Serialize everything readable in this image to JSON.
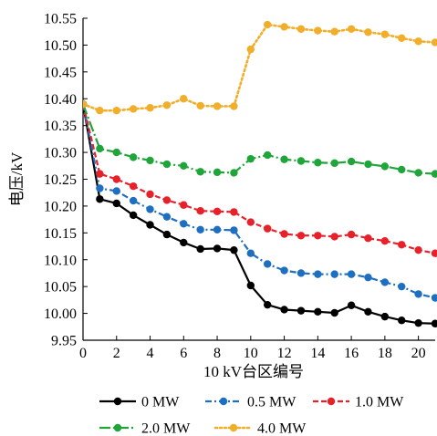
{
  "chart_data": {
    "type": "line",
    "title": "",
    "xlabel": "10 kV台区编号",
    "ylabel": "电压/kV",
    "xlim": [
      0,
      21
    ],
    "ylim": [
      9.95,
      10.55
    ],
    "xticks": [
      "0",
      "2",
      "4",
      "6",
      "8",
      "10",
      "12",
      "14",
      "16",
      "18",
      "20"
    ],
    "yticks": [
      "9.95",
      "10.00",
      "10.05",
      "10.10",
      "10.15",
      "10.20",
      "10.25",
      "10.30",
      "10.35",
      "10.40",
      "10.45",
      "10.50",
      "10.55"
    ],
    "grid": false,
    "legend_position": "bottom",
    "x": [
      0,
      1,
      2,
      3,
      4,
      5,
      6,
      7,
      8,
      9,
      10,
      11,
      12,
      13,
      14,
      15,
      16,
      17,
      18,
      19,
      20,
      21
    ],
    "series": [
      {
        "name": "0 MW",
        "color": "#000000",
        "dash": "solid",
        "values": [
          10.39,
          10.213,
          10.205,
          10.183,
          10.165,
          10.147,
          10.132,
          10.12,
          10.121,
          10.118,
          10.052,
          10.016,
          10.007,
          10.005,
          10.003,
          10.001,
          10.015,
          10.003,
          9.994,
          9.987,
          9.982,
          9.981
        ]
      },
      {
        "name": "0.5 MW",
        "color": "#1f6fc0",
        "dash": "dashdot",
        "values": [
          10.39,
          10.233,
          10.228,
          10.21,
          10.194,
          10.18,
          10.167,
          10.156,
          10.156,
          10.155,
          10.112,
          10.092,
          10.08,
          10.075,
          10.073,
          10.073,
          10.073,
          10.067,
          10.058,
          10.05,
          10.036,
          10.029
        ]
      },
      {
        "name": "1.0 MW",
        "color": "#e8202a",
        "dash": "dash",
        "values": [
          10.39,
          10.26,
          10.25,
          10.237,
          10.222,
          10.211,
          10.202,
          10.191,
          10.19,
          10.189,
          10.17,
          10.158,
          10.148,
          10.145,
          10.145,
          10.143,
          10.147,
          10.14,
          10.135,
          10.128,
          10.118,
          10.112
        ]
      },
      {
        "name": "2.0 MW",
        "color": "#20a53a",
        "dash": "longdashdot",
        "values": [
          10.39,
          10.307,
          10.3,
          10.291,
          10.285,
          10.278,
          10.275,
          10.264,
          10.263,
          10.262,
          10.288,
          10.295,
          10.287,
          10.284,
          10.281,
          10.28,
          10.283,
          10.278,
          10.274,
          10.268,
          10.262,
          10.26
        ]
      },
      {
        "name": "4.0 MW",
        "color": "#f0ae2a",
        "dash": "dotted",
        "values": [
          10.39,
          10.378,
          10.378,
          10.381,
          10.383,
          10.388,
          10.4,
          10.387,
          10.386,
          10.386,
          10.492,
          10.538,
          10.534,
          10.53,
          10.527,
          10.525,
          10.53,
          10.524,
          10.52,
          10.513,
          10.507,
          10.505
        ]
      }
    ]
  }
}
